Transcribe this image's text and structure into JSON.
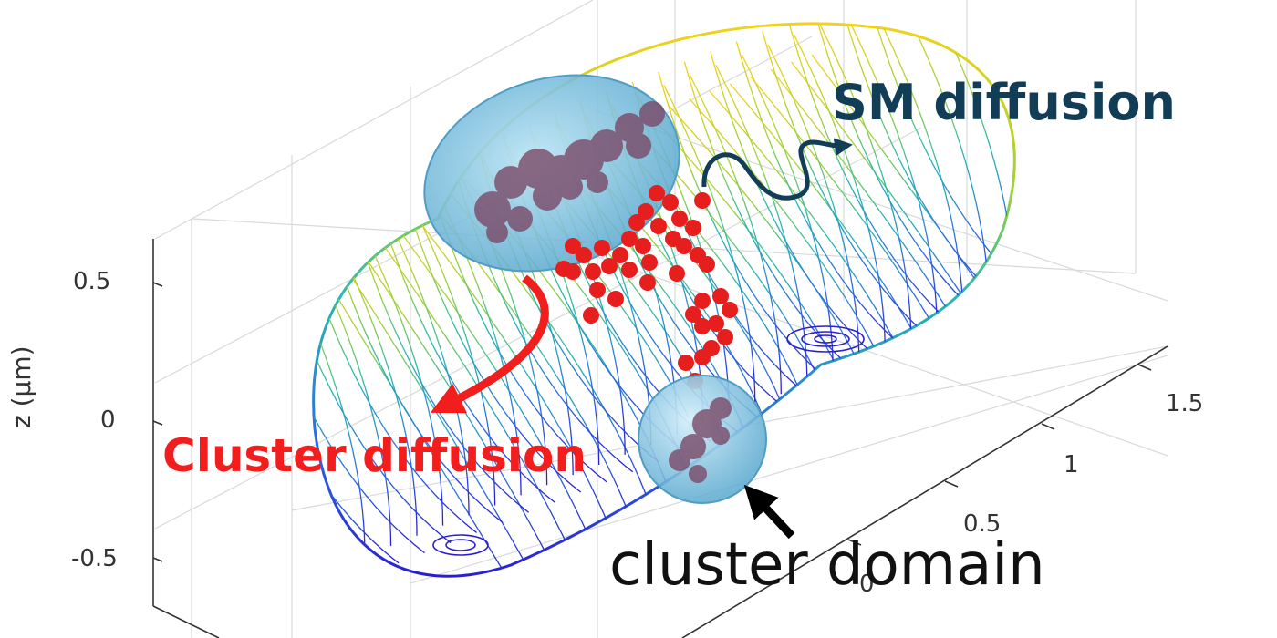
{
  "labels": {
    "sm_diffusion": "SM diffusion",
    "cluster_diffusion": "Cluster diffusion",
    "cluster_domain": "cluster domain"
  },
  "axes": {
    "z_label": "z (μm)",
    "z_ticks": [
      "0.5",
      "0",
      "-0.5"
    ],
    "y_ticks": [
      "1.5",
      "1",
      "0.5",
      "0"
    ]
  },
  "colors": {
    "sm_arrow": "#123d56",
    "cluster_arrow": "#f21d1d",
    "domain_arrow": "#000000",
    "points": "#e61e1e",
    "domain_fill": "#7cc3e6",
    "domain_contents": "#7a4a68"
  }
}
